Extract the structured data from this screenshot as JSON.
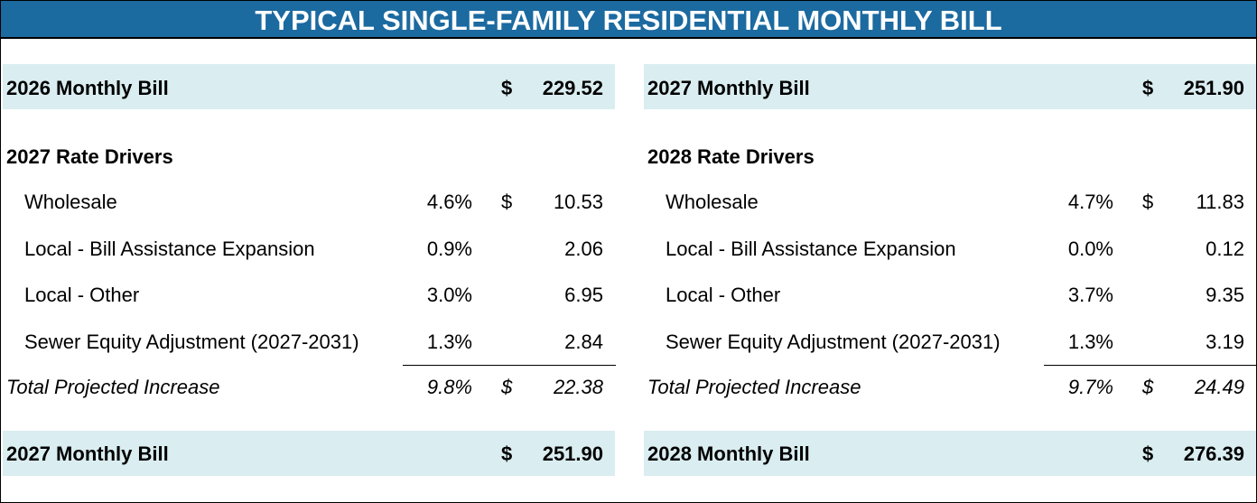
{
  "title": "TYPICAL SINGLE-FAMILY RESIDENTIAL MONTHLY BILL",
  "panels": [
    {
      "start": {
        "label": "2026 Monthly Bill",
        "dollar": "$",
        "amount": "229.52"
      },
      "drivers_heading": "2027 Rate Drivers",
      "drivers": [
        {
          "label": "Wholesale",
          "pct": "4.6%",
          "dollar": "$",
          "amount": "10.53"
        },
        {
          "label": "Local - Bill Assistance Expansion",
          "pct": "0.9%",
          "amount": "2.06"
        },
        {
          "label": "Local - Other",
          "pct": "3.0%",
          "amount": "6.95"
        },
        {
          "label": "Sewer Equity Adjustment (2027-2031)",
          "pct": "1.3%",
          "amount": "2.84"
        }
      ],
      "total": {
        "label": "Total Projected Increase",
        "pct": "9.8%",
        "dollar": "$",
        "amount": "22.38"
      },
      "end": {
        "label": "2027 Monthly Bill",
        "dollar": "$",
        "amount": "251.90"
      }
    },
    {
      "start": {
        "label": "2027 Monthly Bill",
        "dollar": "$",
        "amount": "251.90"
      },
      "drivers_heading": "2028 Rate Drivers",
      "drivers": [
        {
          "label": "Wholesale",
          "pct": "4.7%",
          "dollar": "$",
          "amount": "11.83"
        },
        {
          "label": "Local - Bill Assistance Expansion",
          "pct": "0.0%",
          "amount": "0.12"
        },
        {
          "label": "Local - Other",
          "pct": "3.7%",
          "amount": "9.35"
        },
        {
          "label": "Sewer Equity Adjustment (2027-2031)",
          "pct": "1.3%",
          "amount": "3.19"
        }
      ],
      "total": {
        "label": "Total Projected Increase",
        "pct": "9.7%",
        "dollar": "$",
        "amount": "24.49"
      },
      "end": {
        "label": "2028 Monthly Bill",
        "dollar": "$",
        "amount": "276.39"
      }
    }
  ]
}
